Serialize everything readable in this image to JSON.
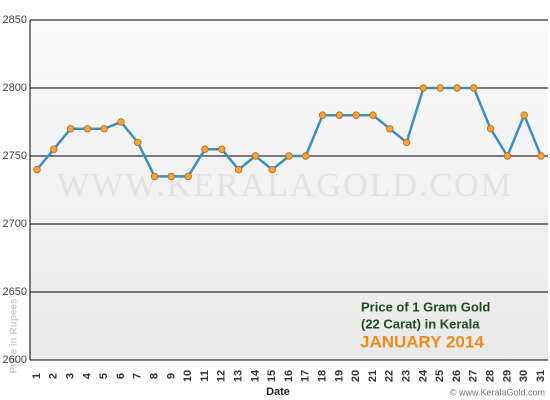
{
  "chart_data": {
    "type": "line",
    "title": [
      "Price of 1 Gram Gold",
      "(22 Carat) in Kerala"
    ],
    "subtitle": "JANUARY 2014",
    "x_label": "Date",
    "y_label": "Price in Rupees",
    "watermark": "WWW.KERALAGOLD.COM",
    "footer": "© www.KeralaGold.com",
    "categories": [
      "1",
      "2",
      "3",
      "4",
      "5",
      "6",
      "7",
      "8",
      "9",
      "10",
      "11",
      "12",
      "13",
      "14",
      "15",
      "16",
      "17",
      "18",
      "19",
      "20",
      "21",
      "22",
      "23",
      "24",
      "25",
      "26",
      "27",
      "28",
      "29",
      "30",
      "31"
    ],
    "series": [
      {
        "color": "#3a8fc0",
        "marker_color": "#f7a23a",
        "values": [
          2740,
          2755,
          2770,
          2770,
          2770,
          2775,
          2760,
          2735,
          2735,
          2735,
          2755,
          2755,
          2740,
          2750,
          2740,
          2750,
          2750,
          2780,
          2780,
          2780,
          2780,
          2770,
          2760,
          2800,
          2800,
          2800,
          2800,
          2770,
          2750,
          2780,
          2750
        ]
      }
    ],
    "ylim": [
      2600,
      2850
    ],
    "yticks": [
      2600,
      2650,
      2700,
      2750,
      2800,
      2850
    ],
    "grid": true
  }
}
